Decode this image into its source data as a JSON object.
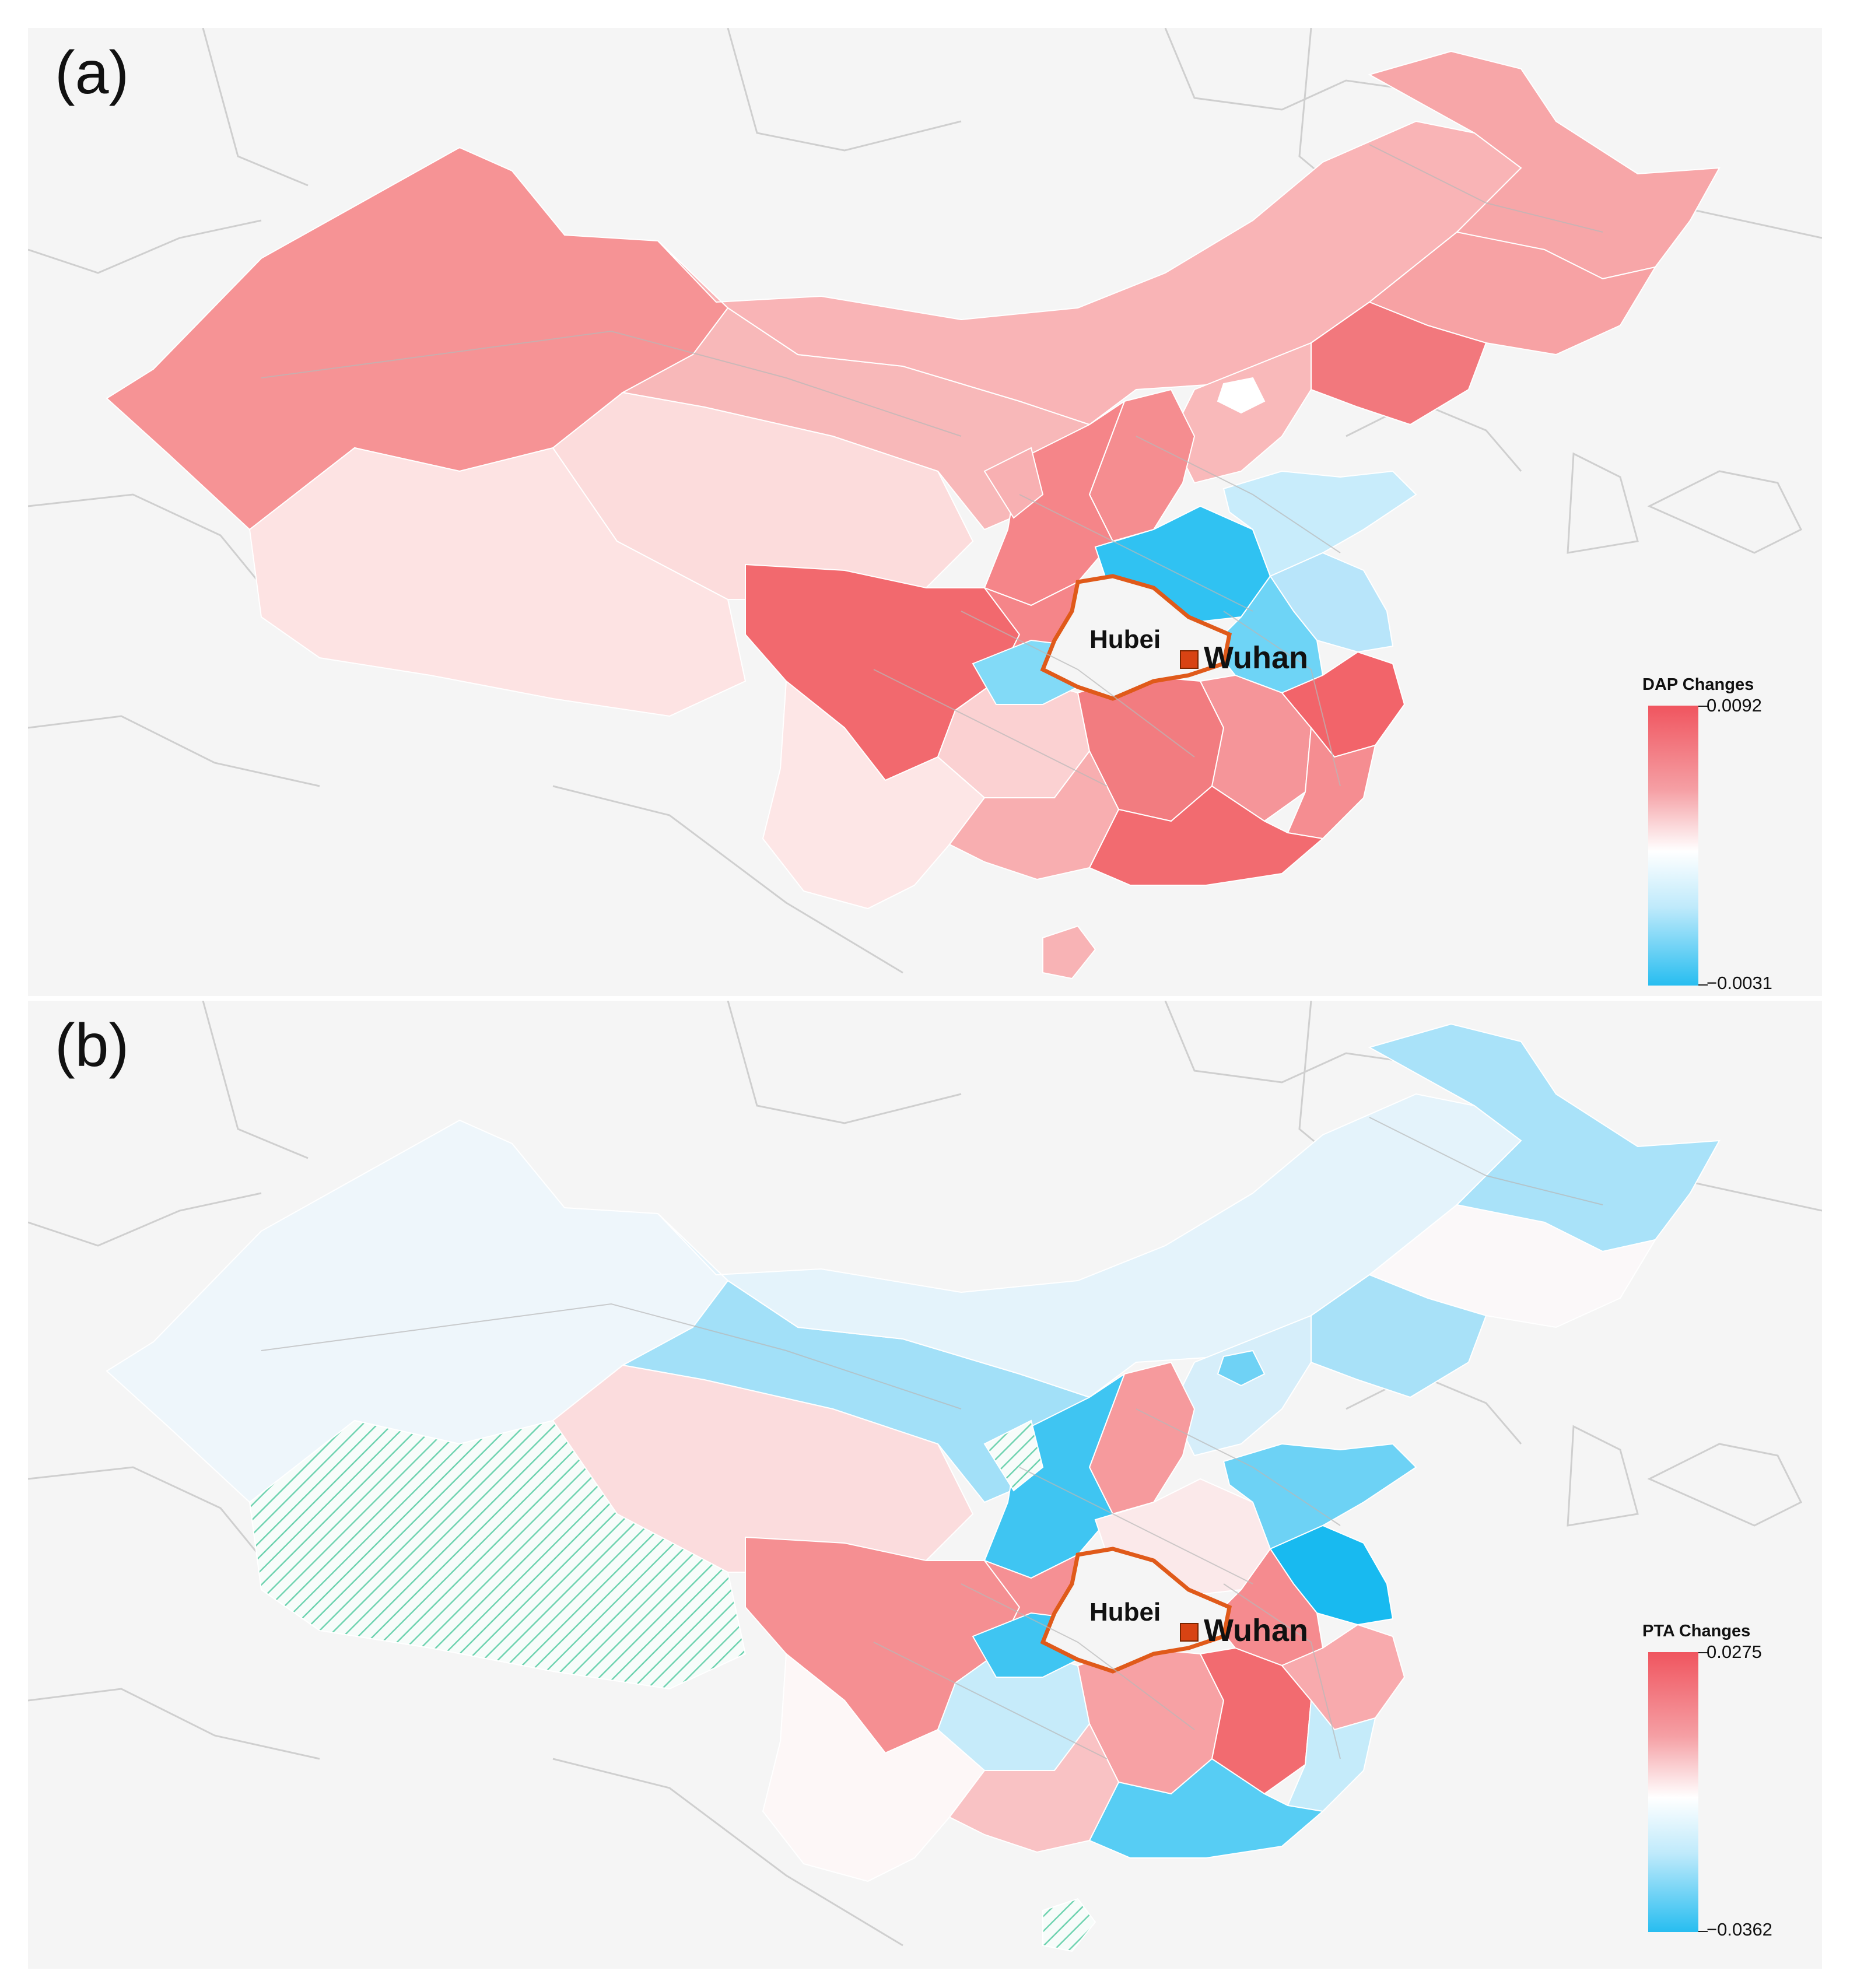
{
  "panels": [
    {
      "label": "(a)",
      "region_label": "Hubei",
      "city_label": "Wuhan",
      "legend": {
        "title": "DAP Changes",
        "max": "0.0092",
        "min": "−0.0031"
      },
      "colors": {
        "xinjiang": "#f69395",
        "tibet": "#fde3e3",
        "qinghai": "#fcdcdc",
        "gansu": "#f8b8b9",
        "inner_mongolia": "#f9b4b6",
        "heilongjiang": "#f7a6a8",
        "jilin": "#f7a2a4",
        "liaoning": "#f2787d",
        "hebei": "#f9b9ba",
        "beijing": "#ffffff",
        "shanxi": "#f58d90",
        "shaanxi": "#f58589",
        "ningxia": "#f8b0b2",
        "henan": "#30c2f2",
        "shandong": "#c8ecfb",
        "jiangsu": "#b8e5fa",
        "anhui": "#6ed4f6",
        "hubei": "#f5f5f5",
        "sichuan": "#f2696e",
        "chongqing": "#f58589",
        "guizhou": "#fbd1d2",
        "yunnan": "#fde6e6",
        "hunan": "#f27c80",
        "jiangxi": "#f59599",
        "zhejiang": "#f2646a",
        "fujian": "#f58d91",
        "guangdong": "#f26b70",
        "guangxi": "#f8aeb0",
        "hainan": "#f8b3b5",
        "west_hubei": "#82daf7"
      }
    },
    {
      "label": "(b)",
      "region_label": "Hubei",
      "city_label": "Wuhan",
      "legend": {
        "title": "PTA Changes",
        "max": "0.0275",
        "min": "−0.0362"
      },
      "colors": {
        "xinjiang": "#eef6fb",
        "tibet": "hatch",
        "qinghai": "#fbdcdd",
        "gansu": "#a2e0f8",
        "inner_mongolia": "#e4f3fb",
        "heilongjiang": "#a9e2f9",
        "jilin": "#fbf8f9",
        "liaoning": "#a8e1f8",
        "hebei": "#d6eefa",
        "beijing": "#6fd2f5",
        "shanxi": "#f69a9d",
        "shaanxi": "#3fc5f2",
        "ningxia": "hatch",
        "henan": "#fbe9ea",
        "shandong": "#6dd2f5",
        "jiangsu": "#18baf0",
        "anhui": "#f58b8f",
        "hubei": "#f5f5f5",
        "sichuan": "#f58f92",
        "chongqing": "#f59094",
        "guizhou": "#c6ebfa",
        "yunnan": "#fdf7f7",
        "hunan": "#f7a1a4",
        "jiangxi": "#f26b70",
        "zhejiang": "#f8aaad",
        "fujian": "#c5ebfa",
        "guangdong": "#57cdf4",
        "guangxi": "#f9c2c4",
        "hainan": "hatch",
        "west_hubei": "#3fc5f2"
      }
    }
  ]
}
